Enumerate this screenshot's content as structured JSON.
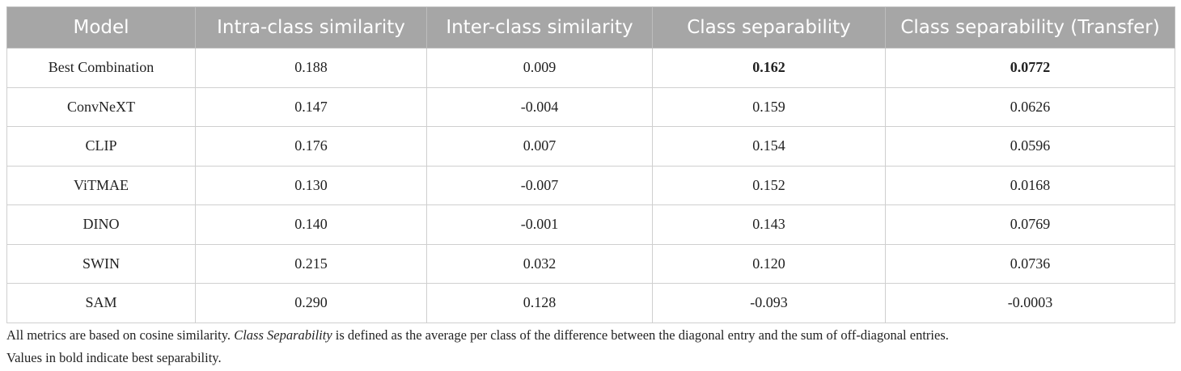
{
  "table": {
    "header": [
      "Model",
      "Intra-class similarity",
      "Inter-class similarity",
      "Class separability",
      "Class separability (Transfer)"
    ],
    "rows": [
      [
        "Best Combination",
        "0.188",
        "0.009",
        "0.162",
        "0.0772"
      ],
      [
        "ConvNeXT",
        "0.147",
        "-0.004",
        "0.159",
        "0.0626"
      ],
      [
        "CLIP",
        "0.176",
        "0.007",
        "0.154",
        "0.0596"
      ],
      [
        "ViTMAE",
        "0.130",
        "-0.007",
        "0.152",
        "0.0168"
      ],
      [
        "DINO",
        "0.140",
        "-0.001",
        "0.143",
        "0.0769"
      ],
      [
        "SWIN",
        "0.215",
        "0.032",
        "0.120",
        "0.0736"
      ],
      [
        "SAM",
        "0.290",
        "0.128",
        "-0.093",
        "-0.0003"
      ]
    ]
  },
  "footnote": {
    "line1": [
      "All metrics are based on cosine similarity. ",
      "Class Separability",
      " is defined as the average per class of the difference between the diagonal entry and the sum of off-diagonal entries."
    ],
    "line2": "Values in bold indicate best separability."
  }
}
